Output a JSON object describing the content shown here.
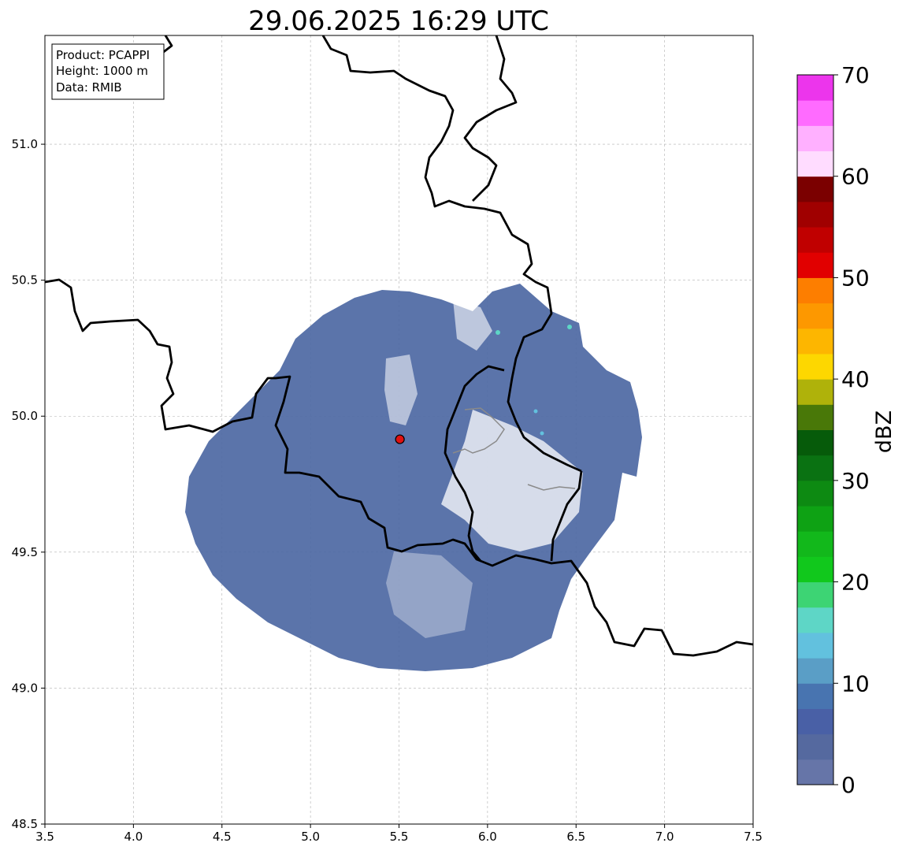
{
  "title": "29.06.2025 16:29 UTC",
  "info_box": {
    "product": "Product: PCAPPI",
    "height": "Height: 1000 m",
    "data": "Data: RMIB"
  },
  "map": {
    "x_ticks": [
      "3.5",
      "4.0",
      "4.5",
      "5.0",
      "5.5",
      "6.0",
      "6.5",
      "7.0",
      "7.5"
    ],
    "y_ticks": [
      "48.5",
      "49.0",
      "49.5",
      "50.0",
      "50.5",
      "51.0"
    ],
    "xlim": [
      3.5,
      7.5
    ],
    "ylim": [
      48.5,
      51.4
    ],
    "grid": true,
    "radar_site": {
      "lon": 5.505,
      "lat": 49.915
    },
    "echo_color": "#4d68a3",
    "site_color": "#e01010"
  },
  "colorbar": {
    "label": "dBZ",
    "ticks": [
      "0",
      "10",
      "20",
      "30",
      "40",
      "50",
      "60",
      "70"
    ],
    "min": 0,
    "max": 70,
    "step": 2.5,
    "colors": [
      "#6675a8",
      "#55699f",
      "#4960a6",
      "#4874b0",
      "#5a9ec6",
      "#62c1de",
      "#5ed6c6",
      "#3dd474",
      "#11c81c",
      "#12b81b",
      "#0ea214",
      "#0d8a12",
      "#0a7212",
      "#065b0a",
      "#497808",
      "#afb20a",
      "#fdd700",
      "#fdb600",
      "#fd9800",
      "#fd7e00",
      "#e10000",
      "#c00000",
      "#a00000",
      "#7b0000",
      "#ffdcff",
      "#ffb0ff",
      "#ff6bff",
      "#ec35ec"
    ]
  }
}
